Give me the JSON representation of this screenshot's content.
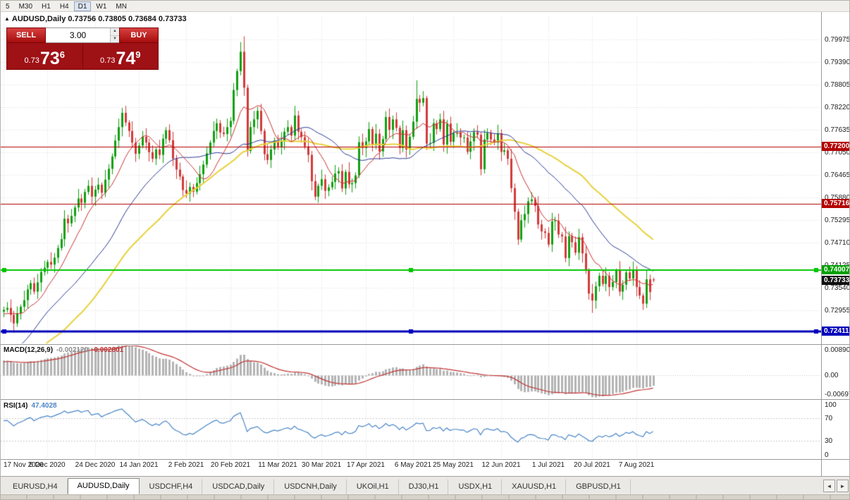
{
  "toolbar": {
    "timeframes": [
      "5",
      "M30",
      "H1",
      "H4",
      "D1",
      "W1",
      "MN"
    ],
    "active": "D1"
  },
  "chart": {
    "title": "AUDUSD,Daily 0.73756 0.73805 0.73684 0.73733",
    "symbol": "AUDUSD",
    "period": "Daily",
    "ohlc": {
      "open": "0.73756",
      "high": "0.73805",
      "low": "0.73684",
      "close": "0.73733"
    }
  },
  "one_click": {
    "sell_label": "SELL",
    "buy_label": "BUY",
    "volume": "3.00",
    "sell_price": {
      "small": "0.73",
      "big": "73",
      "sup": "6"
    },
    "buy_price": {
      "small": "0.73",
      "big": "74",
      "sup": "9"
    }
  },
  "icons": {
    "one_click_toggle": "▲",
    "spin_up": "▲",
    "spin_down": "▼",
    "tab_scroll_left": "◄",
    "tab_scroll_right": "►"
  },
  "tabs": [
    {
      "label": "EURUSD,H4",
      "active": false
    },
    {
      "label": "AUDUSD,Daily",
      "active": true
    },
    {
      "label": "USDCHF,H4",
      "active": false
    },
    {
      "label": "USDCAD,Daily",
      "active": false
    },
    {
      "label": "USDCNH,Daily",
      "active": false
    },
    {
      "label": "UKOil,H1",
      "active": false
    },
    {
      "label": "DJ30,H1",
      "active": false
    },
    {
      "label": "USDX,H1",
      "active": false
    },
    {
      "label": "XAUUSD,H1",
      "active": false
    },
    {
      "label": "GBPUSD,H1",
      "active": false
    }
  ],
  "chart_data": {
    "type": "candlestick",
    "symbol": "AUDUSD",
    "timeframe": "Daily",
    "price_axis": {
      "visible_max": 0.8057,
      "visible_min": 0.721,
      "tick_labels": [
        "0.79975",
        "0.79390",
        "0.78805",
        "0.78220",
        "0.77635",
        "0.77050",
        "0.76465",
        "0.75880",
        "0.75295",
        "0.74710",
        "0.74125",
        "0.73540",
        "0.72955",
        "0.72370"
      ]
    },
    "date_ticks": [
      {
        "label": "17 Nov 2020",
        "index": 0
      },
      {
        "label": "5 Dec 2020",
        "index": 13
      },
      {
        "label": "24 Dec 2020",
        "index": 27
      },
      {
        "label": "14 Jan 2021",
        "index": 40
      },
      {
        "label": "2 Feb 2021",
        "index": 54
      },
      {
        "label": "20 Feb 2021",
        "index": 67
      },
      {
        "label": "11 Mar 2021",
        "index": 81
      },
      {
        "label": "30 Mar 2021",
        "index": 94
      },
      {
        "label": "17 Apr 2021",
        "index": 107
      },
      {
        "label": "6 May 2021",
        "index": 121
      },
      {
        "label": "25 May 2021",
        "index": 133
      },
      {
        "label": "12 Jun 2021",
        "index": 147
      },
      {
        "label": "1 Jul 2021",
        "index": 161
      },
      {
        "label": "20 Jul 2021",
        "index": 174
      },
      {
        "label": "7 Aug 2021",
        "index": 187
      }
    ],
    "first_open": 0.7292,
    "pre_history_closes": [
      0.718,
      0.7215,
      0.724,
      0.7255,
      0.723,
      0.7268,
      0.729,
      0.731,
      0.7345,
      0.7365,
      0.734,
      0.731,
      0.7285,
      0.73,
      0.727,
      0.724,
      0.7205,
      0.718,
      0.715,
      0.711,
      0.706,
      0.703,
      0.701,
      0.7045,
      0.708,
      0.712,
      0.715,
      0.716,
      0.713,
      0.7105,
      0.7085,
      0.712,
      0.714,
      0.716,
      0.713,
      0.71,
      0.708,
      0.706,
      0.704,
      0.702,
      0.7005,
      0.703,
      0.706,
      0.7095,
      0.713,
      0.716,
      0.7185,
      0.721,
      0.724,
      0.7265,
      0.7285,
      0.7297,
      0.728,
      0.7265,
      0.729,
      0.7305,
      0.7285,
      0.727,
      0.7285,
      0.7292
    ],
    "closes": [
      0.7297,
      0.7302,
      0.7284,
      0.7262,
      0.7288,
      0.7305,
      0.7322,
      0.735,
      0.7366,
      0.7344,
      0.7368,
      0.7395,
      0.7406,
      0.7421,
      0.7414,
      0.7432,
      0.7457,
      0.748,
      0.7533,
      0.7521,
      0.754,
      0.7562,
      0.7585,
      0.7574,
      0.7602,
      0.7618,
      0.759,
      0.7608,
      0.7621,
      0.76,
      0.7634,
      0.7662,
      0.7694,
      0.7735,
      0.777,
      0.7807,
      0.7782,
      0.776,
      0.773,
      0.7701,
      0.7722,
      0.7745,
      0.773,
      0.7705,
      0.7688,
      0.7712,
      0.7698,
      0.774,
      0.7762,
      0.7736,
      0.7688,
      0.766,
      0.7642,
      0.7607,
      0.7598,
      0.7615,
      0.7603,
      0.7625,
      0.7648,
      0.7673,
      0.7702,
      0.773,
      0.776,
      0.778,
      0.7756,
      0.7752,
      0.777,
      0.7786,
      0.7866,
      0.7915,
      0.7965,
      0.7872,
      0.7708,
      0.777,
      0.779,
      0.7812,
      0.776,
      0.77,
      0.7685,
      0.7712,
      0.7735,
      0.7718,
      0.7735,
      0.7758,
      0.777,
      0.7748,
      0.78,
      0.7758,
      0.7744,
      0.772,
      0.7698,
      0.763,
      0.759,
      0.7618,
      0.7635,
      0.7605,
      0.7614,
      0.7628,
      0.765,
      0.7656,
      0.7611,
      0.7654,
      0.7622,
      0.7625,
      0.7645,
      0.7731,
      0.7716,
      0.7733,
      0.7765,
      0.7723,
      0.7753,
      0.7707,
      0.7739,
      0.7796,
      0.7763,
      0.779,
      0.7768,
      0.7716,
      0.7762,
      0.7712,
      0.7745,
      0.7784,
      0.7843,
      0.7833,
      0.7845,
      0.7727,
      0.7729,
      0.778,
      0.7765,
      0.779,
      0.7725,
      0.7779,
      0.7732,
      0.7755,
      0.7755,
      0.7743,
      0.7743,
      0.7706,
      0.7733,
      0.7757,
      0.775,
      0.7661,
      0.7738,
      0.7755,
      0.7738,
      0.773,
      0.7754,
      0.7706,
      0.771,
      0.7688,
      0.7612,
      0.7551,
      0.7479,
      0.7529,
      0.7545,
      0.7578,
      0.7583,
      0.7566,
      0.7518,
      0.75,
      0.7496,
      0.7466,
      0.7526,
      0.7528,
      0.7492,
      0.7487,
      0.7431,
      0.7488,
      0.7472,
      0.7445,
      0.7485,
      0.7443,
      0.7399,
      0.7339,
      0.7321,
      0.7358,
      0.7385,
      0.7364,
      0.7385,
      0.7356,
      0.7369,
      0.7398,
      0.7344,
      0.7362,
      0.7394,
      0.7378,
      0.74,
      0.7356,
      0.7334,
      0.7313,
      0.7376,
      0.7343,
      0.73733
    ],
    "wick_high": [
      0.0008,
      0.0015,
      0.0022,
      0.001,
      0.0018,
      0.0006,
      0.0025,
      0.0012
    ],
    "wick_low": [
      0.0014,
      0.0007,
      0.0019,
      0.0024,
      0.0009,
      0.0016,
      0.0011,
      0.0021
    ],
    "candle_overrides": {
      "35": {
        "h": 0.782
      },
      "71": {
        "h": 0.8005
      },
      "122": {
        "h": 0.7891
      },
      "174": {
        "l": 0.7289
      },
      "192": {
        "o": 0.73756,
        "h": 0.73805,
        "l": 0.73684,
        "c": 0.73733
      }
    },
    "candle_colors": {
      "up": "#10a010",
      "down": "#d23a3a"
    },
    "moving_averages": [
      {
        "name": "ma-slow-yellow",
        "period": 50,
        "color": "#e8d23c",
        "width": 2
      },
      {
        "name": "ma-mid-blue",
        "period": 30,
        "color": "#2c3a96",
        "width": 1
      },
      {
        "name": "ma-fast-red",
        "period": 10,
        "color": "#cc3333",
        "width": 1
      }
    ],
    "hlines": [
      {
        "price": 0.772,
        "color": "#b40000",
        "width": 1,
        "selected": false
      },
      {
        "price": 0.75716,
        "color": "#b40000",
        "width": 1,
        "selected": false
      },
      {
        "price": 0.74007,
        "color": "#00c400",
        "width": 2,
        "selected": true
      },
      {
        "price": 0.72411,
        "color": "#0000bb",
        "width": 3,
        "selected": true
      }
    ],
    "price_badges": [
      {
        "text": "0.77200",
        "price": 0.772,
        "bg": "#b40000"
      },
      {
        "text": "0.75716",
        "price": 0.75716,
        "bg": "#b40000"
      },
      {
        "text": "0.74007",
        "price": 0.74007,
        "bg": "#00a000"
      },
      {
        "text": "0.73733",
        "price": 0.73733,
        "bg": "#101010"
      },
      {
        "text": "0.72411",
        "price": 0.72411,
        "bg": "#0000bb"
      }
    ],
    "macd": {
      "label": "MACD(12,26,9)",
      "value_main": "-0.002120",
      "value_signal": "-0.002801",
      "fast": 12,
      "slow": 26,
      "signal": 9,
      "axis": [
        {
          "label": "0.008903",
          "value": 0.008903
        },
        {
          "label": "0.00",
          "value": 0
        },
        {
          "label": "-0.00697",
          "value": -0.00697
        }
      ],
      "hist_color": "#b4b4b4",
      "signal_color": "#c23333"
    },
    "rsi": {
      "label": "RSI(14)",
      "value": "47.4028",
      "period": 14,
      "levels": [
        70,
        30
      ],
      "axis": [
        {
          "label": "100",
          "value": 100
        },
        {
          "label": "70",
          "value": 70
        },
        {
          "label": "30",
          "value": 30
        },
        {
          "label": "0",
          "value": 0
        }
      ],
      "color": "#4a86c8"
    }
  }
}
